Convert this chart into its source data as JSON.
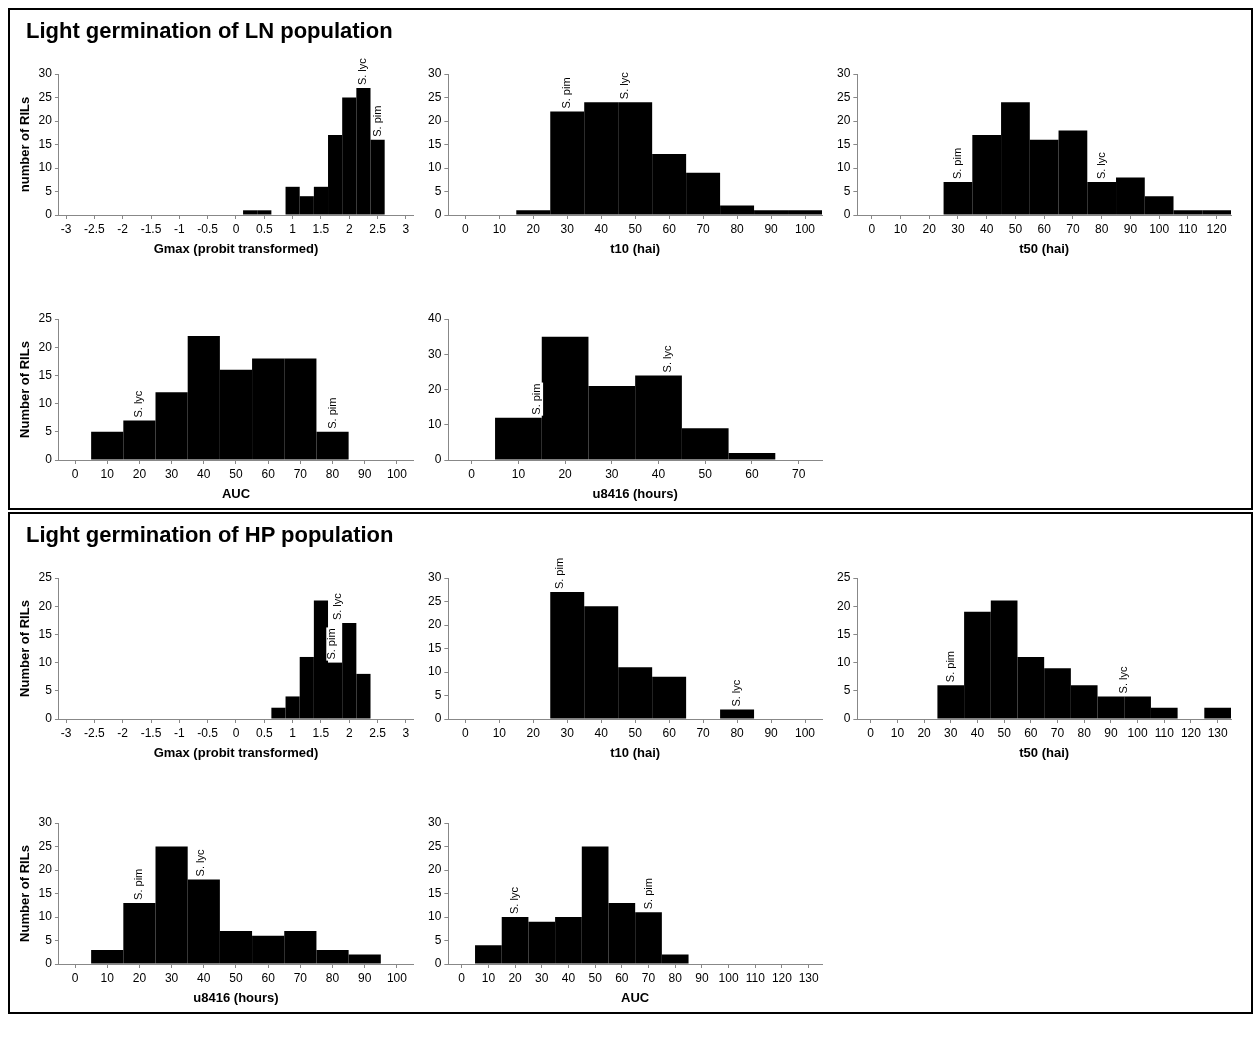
{
  "chart_data": [
    {
      "type": "histogram",
      "title": "Light germination of LN population",
      "xlabel": "Gmax (probit transformed)",
      "ylabel": "number of RILs",
      "color": "#000000",
      "bins": [
        0.125,
        0.375,
        0.625,
        0.875,
        1.125,
        1.375,
        1.625,
        1.875,
        2.125,
        2.375,
        2.625
      ],
      "values": [
        1,
        1,
        0,
        6,
        4,
        6,
        17,
        25,
        27,
        16
      ],
      "xlim": [
        -3.125,
        3.125
      ],
      "xticks": [
        -3,
        -2.5,
        -2,
        -1.5,
        -1,
        -0.5,
        0,
        0.5,
        1,
        1.5,
        2,
        2.5,
        3
      ],
      "ylim": [
        0,
        30
      ],
      "yticks": [
        0,
        5,
        10,
        15,
        20,
        25,
        30
      ],
      "annotations": [
        {
          "text": "S. lyc",
          "x": 2.25,
          "y": 27
        },
        {
          "text": "S. pim",
          "x": 2.5,
          "y": 16
        }
      ]
    },
    {
      "type": "histogram",
      "xlabel": "t10 (hai)",
      "color": "#000000",
      "bins": [
        15,
        25,
        35,
        45,
        55,
        65,
        75,
        85,
        95,
        105
      ],
      "values": [
        1,
        22,
        24,
        24,
        13,
        9,
        2,
        1,
        1
      ],
      "xlim": [
        -5,
        105
      ],
      "xticks": [
        0,
        10,
        20,
        30,
        40,
        50,
        60,
        70,
        80,
        90,
        100
      ],
      "ylim": [
        0,
        30
      ],
      "yticks": [
        0,
        5,
        10,
        15,
        20,
        25,
        30
      ],
      "annotations": [
        {
          "text": "S. pim",
          "x": 30,
          "y": 22
        },
        {
          "text": "S. lyc",
          "x": 47,
          "y": 24
        }
      ]
    },
    {
      "type": "histogram",
      "xlabel": "t50 (hai)",
      "color": "#000000",
      "bins": [
        25,
        35,
        45,
        55,
        65,
        75,
        85,
        95,
        105,
        115,
        125
      ],
      "values": [
        7,
        17,
        24,
        16,
        18,
        7,
        8,
        4,
        1,
        1
      ],
      "xlim": [
        -5,
        125
      ],
      "xticks": [
        0,
        10,
        20,
        30,
        40,
        50,
        60,
        70,
        80,
        90,
        100,
        110,
        120
      ],
      "ylim": [
        0,
        30
      ],
      "yticks": [
        0,
        5,
        10,
        15,
        20,
        25,
        30
      ],
      "annotations": [
        {
          "text": "S. pim",
          "x": 30,
          "y": 7
        },
        {
          "text": "S. lyc",
          "x": 80,
          "y": 7
        }
      ]
    },
    {
      "type": "histogram",
      "xlabel": "AUC",
      "ylabel": "Number of RILs",
      "color": "#000000",
      "bins": [
        5,
        15,
        25,
        35,
        45,
        55,
        65,
        75,
        85
      ],
      "values": [
        5,
        7,
        12,
        22,
        16,
        18,
        18,
        5
      ],
      "xlim": [
        -5,
        105
      ],
      "xticks": [
        0,
        10,
        20,
        30,
        40,
        50,
        60,
        70,
        80,
        90,
        100
      ],
      "ylim": [
        0,
        25
      ],
      "yticks": [
        0,
        5,
        10,
        15,
        20,
        25
      ],
      "annotations": [
        {
          "text": "S. lyc",
          "x": 20,
          "y": 7
        },
        {
          "text": "S. pim",
          "x": 80,
          "y": 5
        }
      ]
    },
    {
      "type": "histogram",
      "xlabel": "u8416 (hours)",
      "color": "#000000",
      "bins": [
        5,
        15,
        25,
        35,
        45,
        55,
        65
      ],
      "values": [
        12,
        35,
        21,
        24,
        9,
        2
      ],
      "xlim": [
        -5,
        75
      ],
      "xticks": [
        0,
        10,
        20,
        30,
        40,
        50,
        60,
        70
      ],
      "ylim": [
        0,
        40
      ],
      "yticks": [
        0,
        10,
        20,
        30,
        40
      ],
      "annotations": [
        {
          "text": "S. pim",
          "x": 14,
          "y": 12
        },
        {
          "text": "S. lyc",
          "x": 42,
          "y": 24
        }
      ]
    },
    {
      "type": "histogram",
      "title": "Light germination of HP population",
      "xlabel": "Gmax (probit transformed)",
      "ylabel": "Number of RILs",
      "color": "#000000",
      "bins": [
        0.625,
        0.875,
        1.125,
        1.375,
        1.625,
        1.875,
        2.125,
        2.375
      ],
      "values": [
        2,
        4,
        11,
        21,
        10,
        17,
        8
      ],
      "xlim": [
        -3.125,
        3.125
      ],
      "xticks": [
        -3,
        -2.5,
        -2,
        -1.5,
        -1,
        -0.5,
        0,
        0.5,
        1,
        1.5,
        2,
        2.5,
        3
      ],
      "ylim": [
        0,
        25
      ],
      "yticks": [
        0,
        5,
        10,
        15,
        20,
        25
      ],
      "annotations": [
        {
          "text": "S. pim",
          "x": 1.7,
          "y": 10
        },
        {
          "text": "S. lyc",
          "x": 1.8,
          "y": 17
        }
      ]
    },
    {
      "type": "histogram",
      "xlabel": "t10 (hai)",
      "color": "#000000",
      "bins": [
        25,
        35,
        45,
        55,
        65,
        75,
        85
      ],
      "values": [
        27,
        24,
        11,
        9,
        0,
        2
      ],
      "xlim": [
        -5,
        105
      ],
      "xticks": [
        0,
        10,
        20,
        30,
        40,
        50,
        60,
        70,
        80,
        90,
        100
      ],
      "ylim": [
        0,
        30
      ],
      "yticks": [
        0,
        5,
        10,
        15,
        20,
        25,
        30
      ],
      "annotations": [
        {
          "text": "S. pim",
          "x": 28,
          "y": 27
        },
        {
          "text": "S. lyc",
          "x": 80,
          "y": 2
        }
      ]
    },
    {
      "type": "histogram",
      "xlabel": "t50 (hai)",
      "color": "#000000",
      "bins": [
        25,
        35,
        45,
        55,
        65,
        75,
        85,
        95,
        105,
        115,
        125,
        135
      ],
      "values": [
        6,
        19,
        21,
        11,
        9,
        6,
        4,
        4,
        2,
        0,
        2
      ],
      "xlim": [
        -5,
        135
      ],
      "xticks": [
        0,
        10,
        20,
        30,
        40,
        50,
        60,
        70,
        80,
        90,
        100,
        110,
        120,
        130
      ],
      "ylim": [
        0,
        25
      ],
      "yticks": [
        0,
        5,
        10,
        15,
        20,
        25
      ],
      "annotations": [
        {
          "text": "S. pim",
          "x": 30,
          "y": 6
        },
        {
          "text": "S. lyc",
          "x": 95,
          "y": 4
        }
      ]
    },
    {
      "type": "histogram",
      "xlabel": "u8416 (hours)",
      "ylabel": "Number of RILs",
      "color": "#000000",
      "bins": [
        5,
        15,
        25,
        35,
        45,
        55,
        65,
        75,
        85,
        95
      ],
      "values": [
        3,
        13,
        25,
        18,
        7,
        6,
        7,
        3,
        2
      ],
      "xlim": [
        -5,
        105
      ],
      "xticks": [
        0,
        10,
        20,
        30,
        40,
        50,
        60,
        70,
        80,
        90,
        100
      ],
      "ylim": [
        0,
        30
      ],
      "yticks": [
        0,
        5,
        10,
        15,
        20,
        25,
        30
      ],
      "annotations": [
        {
          "text": "S. pim",
          "x": 20,
          "y": 13
        },
        {
          "text": "S. lyc",
          "x": 39,
          "y": 18
        }
      ]
    },
    {
      "type": "histogram",
      "xlabel": "AUC",
      "color": "#000000",
      "bins": [
        5,
        15,
        25,
        35,
        45,
        55,
        65,
        75,
        85
      ],
      "values": [
        4,
        10,
        9,
        10,
        25,
        13,
        11,
        2
      ],
      "xlim": [
        -5,
        135
      ],
      "xticks": [
        0,
        10,
        20,
        30,
        40,
        50,
        60,
        70,
        80,
        90,
        100,
        110,
        120,
        130
      ],
      "ylim": [
        0,
        30
      ],
      "yticks": [
        0,
        5,
        10,
        15,
        20,
        25,
        30
      ],
      "annotations": [
        {
          "text": "S. lyc",
          "x": 20,
          "y": 10
        },
        {
          "text": "S. pim",
          "x": 70,
          "y": 11
        }
      ]
    }
  ]
}
